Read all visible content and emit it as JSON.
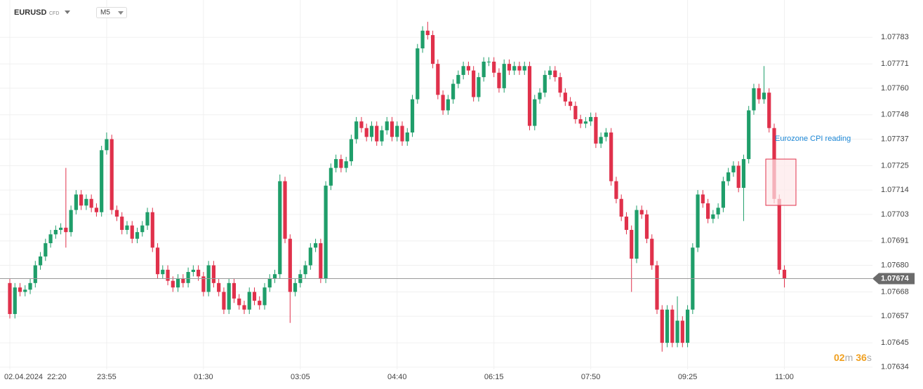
{
  "header": {
    "symbol": "EURUSD",
    "kind": "CFD",
    "timeframe": "M5"
  },
  "countdown": {
    "minutes": "02",
    "minutes_unit": "m",
    "seconds": "36",
    "seconds_unit": "s"
  },
  "chart_data": {
    "type": "candlestick",
    "categories": [
      "02.04.2024  22:20",
      null,
      null,
      null,
      null,
      null,
      null,
      null,
      null,
      null,
      null,
      null,
      null,
      null,
      null,
      null,
      null,
      null,
      null,
      "23:55",
      null,
      null,
      null,
      null,
      null,
      null,
      null,
      null,
      null,
      null,
      null,
      null,
      null,
      null,
      null,
      null,
      null,
      null,
      "01:30",
      null,
      null,
      null,
      null,
      null,
      null,
      null,
      null,
      null,
      null,
      null,
      null,
      null,
      null,
      null,
      null,
      null,
      null,
      "03:05",
      null,
      null,
      null,
      null,
      null,
      null,
      null,
      null,
      null,
      null,
      null,
      null,
      null,
      null,
      null,
      null,
      null,
      null,
      "04:40",
      null,
      null,
      null,
      null,
      null,
      null,
      null,
      null,
      null,
      null,
      null,
      null,
      null,
      null,
      null,
      null,
      null,
      null,
      "06:15",
      null,
      null,
      null,
      null,
      null,
      null,
      null,
      null,
      null,
      null,
      null,
      null,
      null,
      null,
      null,
      null,
      null,
      null,
      "07:50",
      null,
      null,
      null,
      null,
      null,
      null,
      null,
      null,
      null,
      null,
      null,
      null,
      null,
      null,
      null,
      null,
      null,
      null,
      "09:25",
      null,
      null,
      null,
      null,
      null,
      null,
      null,
      null,
      null,
      null,
      null,
      null,
      null,
      null,
      null,
      null,
      null,
      null,
      "11:00"
    ],
    "open": [
      1.07672,
      1.07658,
      1.0767,
      1.07668,
      1.07669,
      1.07672,
      1.0768,
      1.07684,
      1.0769,
      1.07694,
      1.07696,
      1.07697,
      1.07695,
      1.07705,
      1.07712,
      1.07707,
      1.0771,
      1.07706,
      1.07704,
      1.07732,
      1.07737,
      1.07705,
      1.07702,
      1.07696,
      1.07698,
      1.07692,
      1.07695,
      1.07698,
      1.07704,
      1.07688,
      1.07676,
      1.07678,
      1.07673,
      1.0767,
      1.07674,
      1.07672,
      1.07677,
      1.07678,
      1.07675,
      1.07668,
      1.0768,
      1.07672,
      1.07668,
      1.0766,
      1.07672,
      1.07665,
      1.07662,
      1.0766,
      1.07668,
      1.07664,
      1.07662,
      1.0767,
      1.07674,
      1.07676,
      1.07718,
      1.07692,
      1.07668,
      1.07672,
      1.07676,
      1.0768,
      1.07688,
      1.0769,
      1.07674,
      1.07716,
      1.07724,
      1.07728,
      1.07724,
      1.07727,
      1.07737,
      1.07745,
      1.07742,
      1.07738,
      1.07743,
      1.07736,
      1.07741,
      1.07745,
      1.07738,
      1.07743,
      1.07736,
      1.0774,
      1.07755,
      1.07778,
      1.07786,
      1.07784,
      1.07771,
      1.07757,
      1.0775,
      1.07755,
      1.07762,
      1.07766,
      1.0777,
      1.07768,
      1.07756,
      1.07765,
      1.07772,
      1.07772,
      1.07767,
      1.0776,
      1.07771,
      1.07768,
      1.0777,
      1.07768,
      1.0777,
      1.07743,
      1.07755,
      1.07758,
      1.07766,
      1.07768,
      1.07765,
      1.07758,
      1.07754,
      1.07752,
      1.07746,
      1.07744,
      1.07745,
      1.07747,
      1.07735,
      1.07738,
      1.0774,
      1.07718,
      1.0771,
      1.07702,
      1.07696,
      1.07683,
      1.07705,
      1.07703,
      1.07692,
      1.0768,
      1.0766,
      1.07645,
      1.0766,
      1.07645,
      1.07655,
      1.07645,
      1.0766,
      1.07688,
      1.07712,
      1.07708,
      1.07701,
      1.07703,
      1.07706,
      1.07718,
      1.07722,
      1.07725,
      1.07715,
      1.07728,
      1.0775,
      1.0776,
      1.07755,
      1.07758,
      1.07742,
      1.0771,
      1.07678
    ],
    "high": [
      1.07674,
      1.07672,
      1.07672,
      1.07671,
      1.07674,
      1.07682,
      1.07686,
      1.07692,
      1.07696,
      1.07698,
      1.07699,
      1.07724,
      1.07707,
      1.07714,
      1.07714,
      1.07712,
      1.07712,
      1.07708,
      1.07734,
      1.0774,
      1.07739,
      1.07707,
      1.07704,
      1.077,
      1.077,
      1.07697,
      1.077,
      1.07706,
      1.07706,
      1.0769,
      1.0768,
      1.0768,
      1.07675,
      1.07676,
      1.07676,
      1.07679,
      1.0768,
      1.0768,
      1.07677,
      1.07682,
      1.07682,
      1.07674,
      1.0767,
      1.07674,
      1.07674,
      1.07667,
      1.07664,
      1.0767,
      1.0767,
      1.07666,
      1.07672,
      1.07676,
      1.07678,
      1.07721,
      1.0772,
      1.07694,
      1.07674,
      1.07678,
      1.07682,
      1.0769,
      1.07692,
      1.07692,
      1.07718,
      1.07726,
      1.0773,
      1.0773,
      1.07729,
      1.07739,
      1.07747,
      1.07747,
      1.07744,
      1.07745,
      1.07745,
      1.07743,
      1.07747,
      1.07747,
      1.07745,
      1.07745,
      1.07742,
      1.07757,
      1.0778,
      1.07788,
      1.0779,
      1.07786,
      1.07773,
      1.07759,
      1.07757,
      1.07764,
      1.07768,
      1.07772,
      1.07772,
      1.0777,
      1.07767,
      1.07774,
      1.07774,
      1.07774,
      1.07769,
      1.07773,
      1.07773,
      1.07772,
      1.07772,
      1.07772,
      1.07772,
      1.07757,
      1.0776,
      1.07768,
      1.0777,
      1.0777,
      1.07767,
      1.0776,
      1.07756,
      1.07754,
      1.07748,
      1.07747,
      1.07749,
      1.07749,
      1.0774,
      1.07742,
      1.07742,
      1.0772,
      1.07712,
      1.07704,
      1.07698,
      1.07707,
      1.07707,
      1.07705,
      1.07694,
      1.07682,
      1.07662,
      1.07662,
      1.07662,
      1.07666,
      1.07657,
      1.07662,
      1.0769,
      1.07714,
      1.07714,
      1.0771,
      1.07705,
      1.07708,
      1.0772,
      1.07724,
      1.07727,
      1.07727,
      1.0773,
      1.07752,
      1.07762,
      1.07762,
      1.0777,
      1.0776,
      1.07744,
      1.07712,
      1.0768
    ],
    "low": [
      1.07656,
      1.07656,
      1.07666,
      1.07666,
      1.07667,
      1.0767,
      1.07678,
      1.07682,
      1.07688,
      1.07692,
      1.07694,
      1.07688,
      1.07693,
      1.07703,
      1.07705,
      1.07705,
      1.07704,
      1.07702,
      1.07702,
      1.0773,
      1.07703,
      1.077,
      1.07694,
      1.07694,
      1.0769,
      1.0769,
      1.07693,
      1.07696,
      1.07686,
      1.07674,
      1.07674,
      1.07671,
      1.07668,
      1.07668,
      1.0767,
      1.0767,
      1.07675,
      1.07673,
      1.07666,
      1.07666,
      1.0767,
      1.07666,
      1.07658,
      1.07658,
      1.07663,
      1.0766,
      1.07658,
      1.07658,
      1.07662,
      1.0766,
      1.0766,
      1.07668,
      1.07672,
      1.07674,
      1.0769,
      1.07654,
      1.07666,
      1.0767,
      1.07674,
      1.07678,
      1.07686,
      1.07672,
      1.07672,
      1.07714,
      1.07722,
      1.07722,
      1.07722,
      1.07725,
      1.07735,
      1.0774,
      1.07736,
      1.07736,
      1.07734,
      1.07734,
      1.07739,
      1.07736,
      1.07736,
      1.07734,
      1.07734,
      1.07738,
      1.07753,
      1.07776,
      1.07782,
      1.07769,
      1.07755,
      1.07748,
      1.07748,
      1.07753,
      1.0776,
      1.07764,
      1.07766,
      1.07754,
      1.07754,
      1.07763,
      1.0777,
      1.07765,
      1.07758,
      1.07758,
      1.07766,
      1.07766,
      1.07766,
      1.07766,
      1.07741,
      1.07741,
      1.07753,
      1.07756,
      1.07764,
      1.07763,
      1.07756,
      1.07752,
      1.0775,
      1.07744,
      1.07742,
      1.07742,
      1.07743,
      1.07733,
      1.07733,
      1.07736,
      1.07716,
      1.07708,
      1.077,
      1.07694,
      1.07668,
      1.07681,
      1.07701,
      1.0769,
      1.07678,
      1.07658,
      1.07641,
      1.07643,
      1.07643,
      1.07643,
      1.07643,
      1.07643,
      1.07658,
      1.07686,
      1.07706,
      1.07699,
      1.07699,
      1.07701,
      1.07704,
      1.07716,
      1.0772,
      1.07713,
      1.077,
      1.07726,
      1.07748,
      1.07753,
      1.07753,
      1.0774,
      1.07708,
      1.07676,
      1.0767
    ],
    "close": [
      1.07658,
      1.0767,
      1.07668,
      1.07669,
      1.07672,
      1.0768,
      1.07684,
      1.0769,
      1.07694,
      1.07696,
      1.07697,
      1.07695,
      1.07705,
      1.07712,
      1.07707,
      1.0771,
      1.07706,
      1.07704,
      1.07732,
      1.07737,
      1.07705,
      1.07702,
      1.07696,
      1.07698,
      1.07692,
      1.07695,
      1.07698,
      1.07704,
      1.07688,
      1.07676,
      1.07678,
      1.07673,
      1.0767,
      1.07674,
      1.07672,
      1.07677,
      1.07678,
      1.07675,
      1.07668,
      1.0768,
      1.07672,
      1.07668,
      1.0766,
      1.07672,
      1.07665,
      1.07662,
      1.0766,
      1.07668,
      1.07664,
      1.07662,
      1.0767,
      1.07674,
      1.07676,
      1.07718,
      1.07692,
      1.07668,
      1.07672,
      1.07676,
      1.0768,
      1.07688,
      1.0769,
      1.07674,
      1.07716,
      1.07724,
      1.07728,
      1.07724,
      1.07727,
      1.07737,
      1.07745,
      1.07742,
      1.07738,
      1.07743,
      1.07736,
      1.07741,
      1.07745,
      1.07738,
      1.07743,
      1.07736,
      1.0774,
      1.07755,
      1.07778,
      1.07786,
      1.07784,
      1.07771,
      1.07757,
      1.0775,
      1.07755,
      1.07762,
      1.07766,
      1.0777,
      1.07768,
      1.07756,
      1.07765,
      1.07772,
      1.07772,
      1.07767,
      1.0776,
      1.07771,
      1.07768,
      1.0777,
      1.07768,
      1.0777,
      1.07743,
      1.07755,
      1.07758,
      1.07766,
      1.07768,
      1.07765,
      1.07758,
      1.07754,
      1.07752,
      1.07746,
      1.07744,
      1.07745,
      1.07747,
      1.07735,
      1.07738,
      1.0774,
      1.07718,
      1.0771,
      1.07702,
      1.07696,
      1.07683,
      1.07705,
      1.07703,
      1.07692,
      1.0768,
      1.0766,
      1.07645,
      1.0766,
      1.07645,
      1.07655,
      1.07645,
      1.0766,
      1.07688,
      1.07712,
      1.07708,
      1.07701,
      1.07703,
      1.07706,
      1.07718,
      1.07722,
      1.07725,
      1.07715,
      1.07728,
      1.0775,
      1.0776,
      1.07755,
      1.07758,
      1.07742,
      1.0771,
      1.07678,
      1.07674
    ],
    "up_color": "#1f9e6a",
    "down_color": "#e0314b",
    "ylim": [
      1.07633,
      1.07797
    ],
    "yticks": [
      1.07783,
      1.07771,
      {
        "value": 1.0776,
        "label": "1.07760"
      },
      1.07748,
      1.07737,
      1.07725,
      1.07714,
      1.07703,
      1.07691,
      {
        "value": 1.0768,
        "label": "1.07680"
      },
      1.07668,
      1.07657,
      1.07645,
      1.07634
    ],
    "grid": true,
    "last_price": 1.07674,
    "annotation": "Eurozone CPI reading"
  }
}
